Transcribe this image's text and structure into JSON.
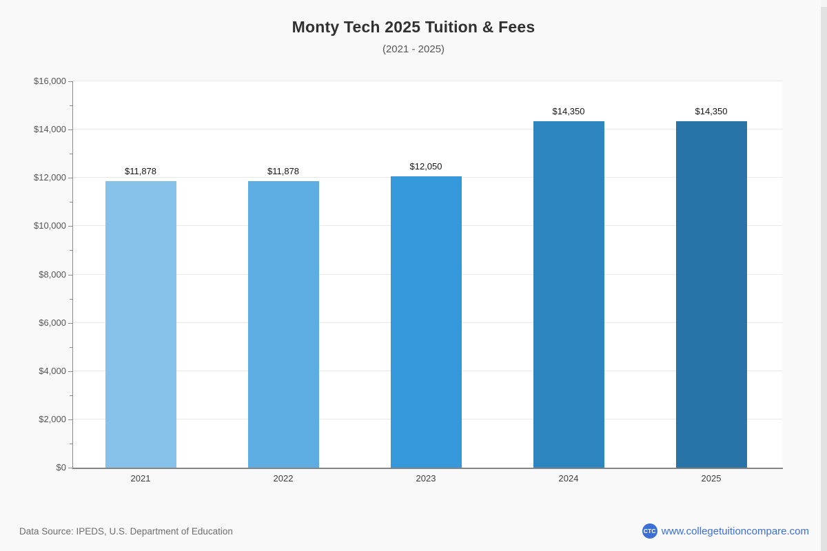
{
  "page": {
    "background_color": "#f9f9f9",
    "plot_background_color": "#ffffff"
  },
  "header": {
    "title": "Monty Tech 2025 Tuition & Fees",
    "subtitle": "(2021 - 2025)"
  },
  "chart_data": {
    "type": "bar",
    "title": "Monty Tech 2025 Tuition & Fees",
    "subtitle": "(2021 - 2025)",
    "categories": [
      "2021",
      "2022",
      "2023",
      "2024",
      "2025"
    ],
    "values": [
      11878,
      11878,
      12050,
      14350,
      14350
    ],
    "value_labels": [
      "$11,878",
      "$11,878",
      "$12,050",
      "$14,350",
      "$14,350"
    ],
    "bar_colors": [
      "#85C1E9",
      "#5DADE2",
      "#3498DB",
      "#2E86C1",
      "#2874A6"
    ],
    "xlabel": "",
    "ylabel": "",
    "ylim": [
      0,
      16000
    ],
    "ytick_major_interval": 2000,
    "ytick_minor_interval": 1000,
    "ytick_labels": [
      "$0",
      "$2,000",
      "$4,000",
      "$6,000",
      "$8,000",
      "$10,000",
      "$12,000",
      "$14,000",
      "$16,000"
    ],
    "grid": "horizontal major gridlines on",
    "legend": "none"
  },
  "footer": {
    "data_source": "Data Source: IPEDS, U.S. Department of Education",
    "logo_text": "CTC",
    "website": "www.collegetuitioncompare.com",
    "link_color": "#3b6fd4"
  }
}
